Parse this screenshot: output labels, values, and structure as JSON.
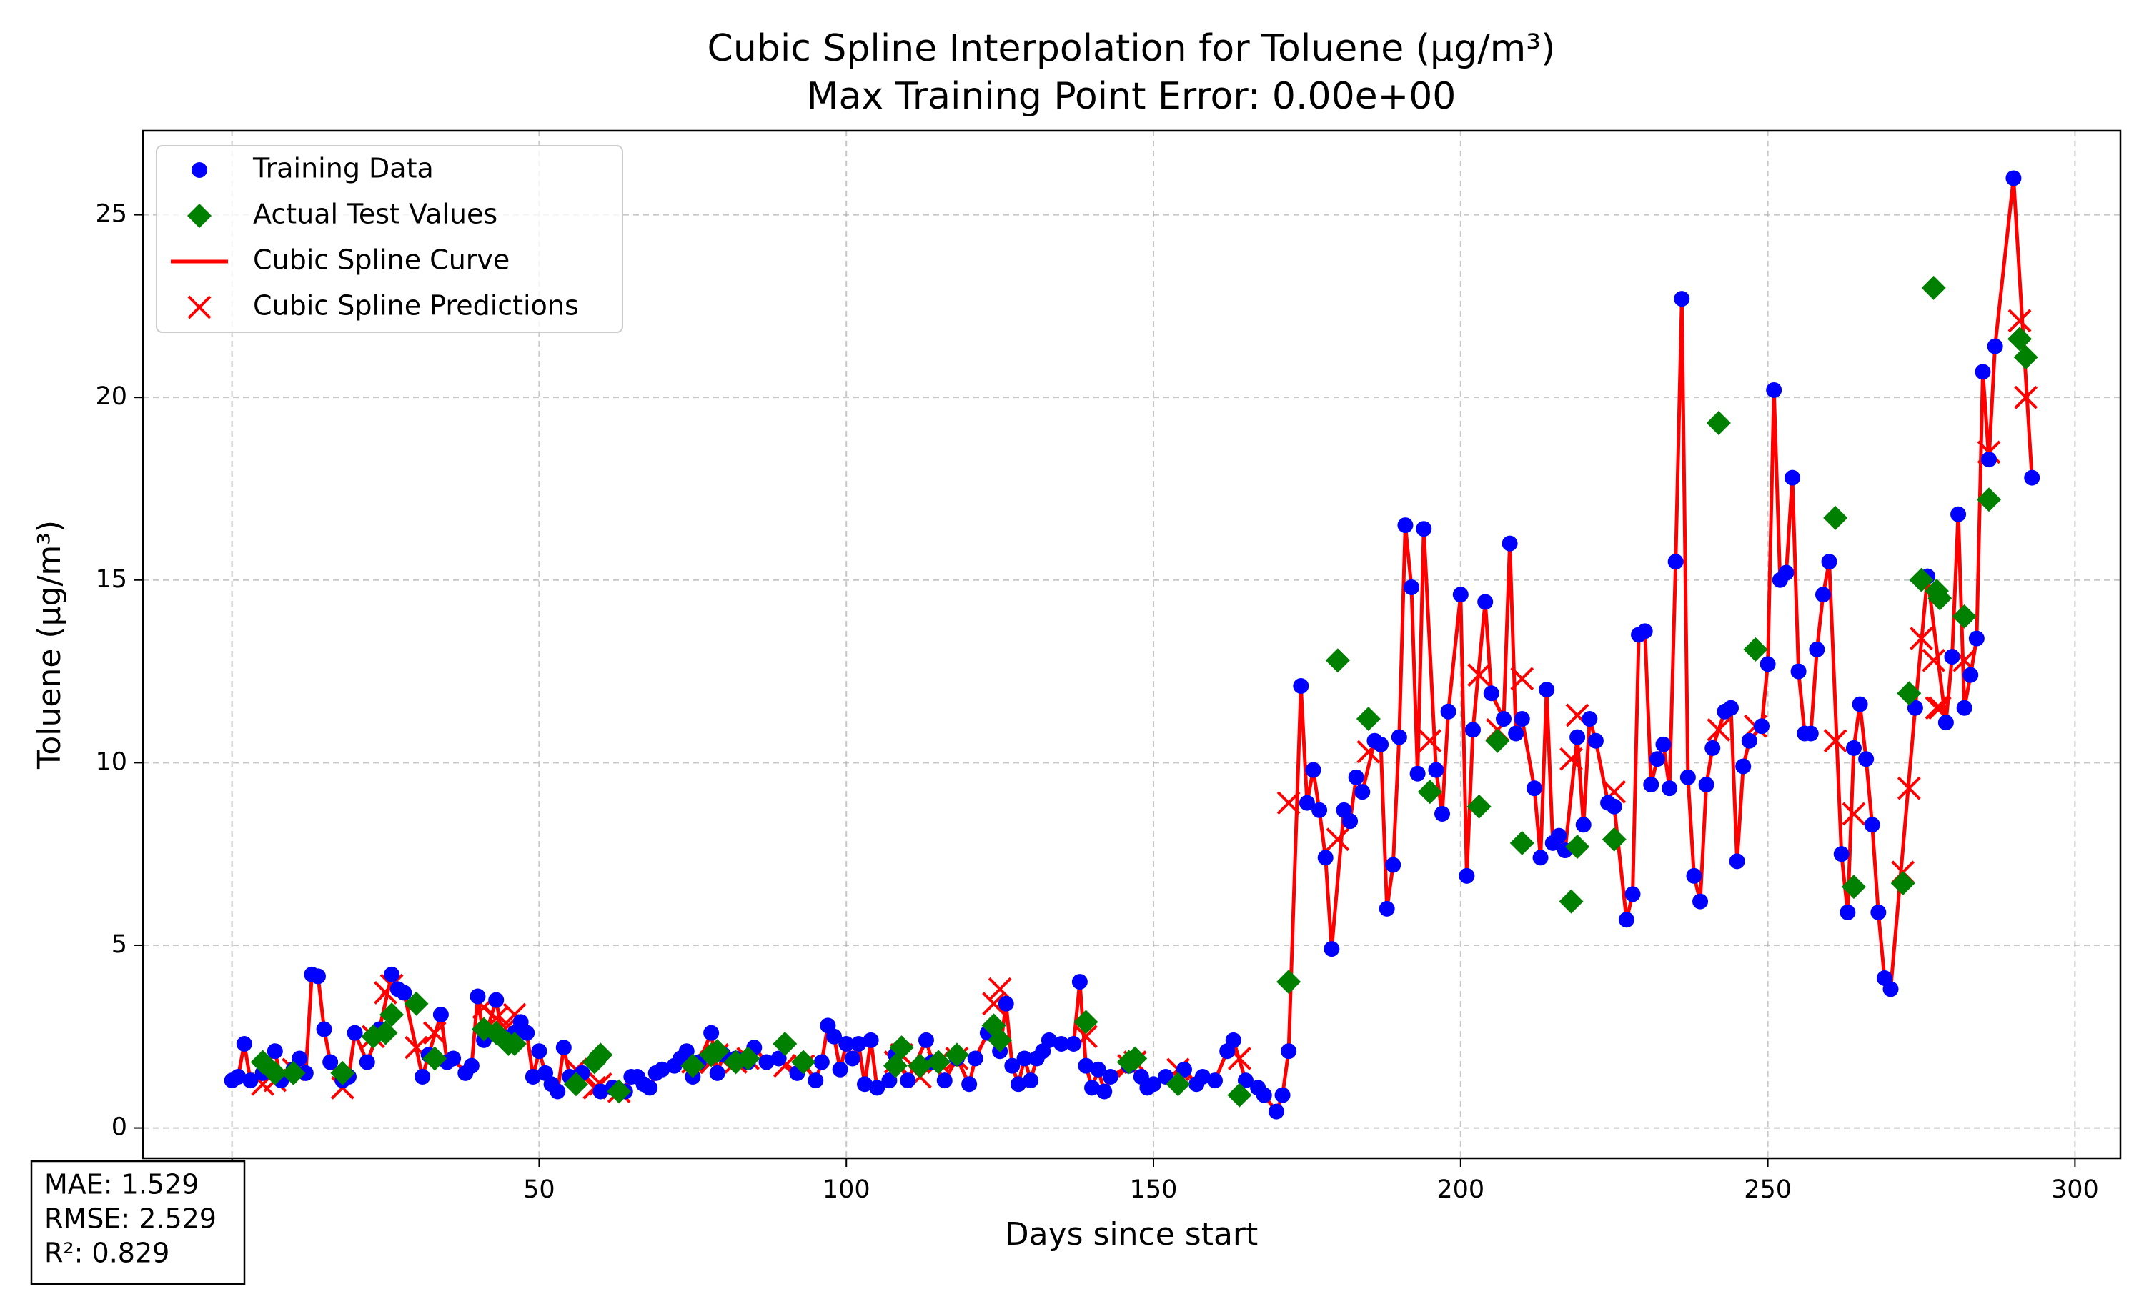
{
  "chart_data": {
    "type": "scatter",
    "title": "Cubic Spline Interpolation for Toluene (µg/m³)",
    "subtitle": "Max Training Point Error: 0.00e+00",
    "xlabel": "Days since start",
    "ylabel": "Toluene (µg/m³)",
    "xlim": [
      -14.5,
      307.4
    ],
    "ylim": [
      -0.83,
      27.3
    ],
    "xticks": [
      0,
      50,
      100,
      150,
      200,
      250,
      300
    ],
    "yticks": [
      0,
      5,
      10,
      15,
      20,
      25
    ],
    "grid": true,
    "legend": "upper left",
    "annotations": [
      "MAE: 1.529",
      "RMSE: 2.529",
      "R²: 0.829"
    ],
    "series": [
      {
        "name": "Training Data",
        "color": "#0000ff",
        "marker": "o",
        "x": [
          0,
          1,
          2,
          3,
          5,
          7,
          8,
          10,
          11,
          12,
          13,
          14,
          15,
          16,
          18,
          19,
          20,
          22,
          24,
          26,
          27,
          28,
          31,
          32,
          34,
          35,
          36,
          38,
          39,
          40,
          41,
          43,
          44,
          46,
          47,
          48,
          49,
          50,
          51,
          52,
          53,
          54,
          55,
          57,
          60,
          62,
          64,
          65,
          66,
          67,
          68,
          69,
          70,
          72,
          73,
          74,
          75,
          76,
          78,
          79,
          80,
          82,
          84,
          85,
          87,
          89,
          92,
          93,
          95,
          96,
          97,
          98,
          99,
          100,
          101,
          102,
          103,
          104,
          105,
          107,
          108,
          110,
          113,
          114,
          116,
          118,
          120,
          121,
          123,
          125,
          126,
          127,
          128,
          129,
          130,
          131,
          132,
          133,
          135,
          137,
          138,
          139,
          140,
          141,
          142,
          143,
          146,
          148,
          149,
          150,
          152,
          155,
          157,
          158,
          160,
          162,
          163,
          165,
          167,
          168,
          170,
          171,
          172,
          174,
          175,
          176,
          177,
          178,
          179,
          181,
          182,
          183,
          184,
          186,
          187,
          188,
          189,
          190,
          191,
          192,
          193,
          194,
          196,
          197,
          198,
          200,
          201,
          202,
          204,
          205,
          207,
          208,
          209,
          210,
          212,
          213,
          214,
          215,
          216,
          217,
          219,
          220,
          221,
          222,
          224,
          225,
          227,
          228,
          229,
          230,
          231,
          232,
          233,
          234,
          235,
          236,
          237,
          238,
          239,
          240,
          241,
          243,
          244,
          245,
          246,
          247,
          249,
          250,
          251,
          252,
          253,
          254,
          255,
          256,
          257,
          258,
          259,
          260,
          262,
          263,
          264,
          265,
          266,
          267,
          268,
          269,
          270,
          274,
          276,
          279,
          280,
          281,
          282,
          283,
          284,
          285,
          286,
          287,
          290,
          293
        ],
        "values": [
          1.3,
          1.4,
          2.3,
          1.3,
          1.5,
          2.1,
          1.3,
          1.6,
          1.9,
          1.5,
          4.2,
          4.15,
          2.7,
          1.8,
          1.3,
          1.4,
          2.6,
          1.8,
          2.7,
          4.2,
          3.8,
          3.7,
          1.4,
          2.0,
          3.1,
          1.8,
          1.9,
          1.5,
          1.7,
          3.6,
          2.4,
          3.5,
          2.5,
          2.6,
          2.9,
          2.6,
          1.4,
          2.1,
          1.5,
          1.2,
          1.0,
          2.2,
          1.4,
          1.5,
          1.0,
          1.1,
          1.0,
          1.4,
          1.4,
          1.2,
          1.1,
          1.5,
          1.6,
          1.7,
          1.9,
          2.1,
          1.4,
          1.8,
          2.6,
          1.5,
          2.0,
          1.9,
          1.8,
          2.2,
          1.8,
          1.9,
          1.5,
          1.8,
          1.3,
          1.8,
          2.8,
          2.5,
          1.6,
          2.3,
          1.9,
          2.3,
          1.2,
          2.4,
          1.1,
          1.3,
          2.0,
          1.3,
          2.4,
          1.8,
          1.3,
          1.9,
          1.2,
          1.9,
          2.6,
          2.1,
          3.4,
          1.7,
          1.2,
          1.9,
          1.3,
          1.9,
          2.1,
          2.4,
          2.3,
          2.3,
          4.0,
          1.7,
          1.1,
          1.6,
          1.0,
          1.4,
          1.7,
          1.4,
          1.1,
          1.2,
          1.4,
          1.6,
          1.2,
          1.4,
          1.3,
          2.1,
          2.4,
          1.3,
          1.1,
          0.9,
          0.45,
          0.9,
          2.1,
          12.1,
          8.9,
          9.8,
          8.7,
          7.4,
          4.9,
          8.7,
          8.4,
          9.6,
          9.2,
          10.6,
          10.5,
          6.0,
          7.2,
          10.7,
          16.5,
          14.8,
          9.7,
          16.4,
          9.8,
          8.6,
          11.4,
          14.6,
          6.9,
          10.9,
          14.4,
          11.9,
          11.2,
          16.0,
          10.8,
          11.2,
          9.3,
          7.4,
          12.0,
          7.8,
          8.0,
          7.6,
          10.7,
          8.3,
          11.2,
          10.6,
          8.9,
          8.8,
          5.7,
          6.4,
          13.5,
          13.6,
          9.4,
          10.1,
          10.5,
          9.3,
          15.5,
          22.7,
          9.6,
          6.9,
          6.2,
          9.4,
          10.4,
          11.4,
          11.5,
          7.3,
          9.9,
          10.6,
          11.0,
          12.7,
          20.2,
          15.0,
          15.2,
          17.8,
          12.5,
          10.8,
          10.8,
          13.1,
          14.6,
          15.5,
          7.5,
          5.9,
          10.4,
          11.6,
          10.1,
          8.3,
          5.9,
          4.1,
          3.8,
          11.5,
          15.1,
          11.1,
          12.9,
          16.8,
          11.5,
          12.4,
          13.4,
          20.7,
          18.3,
          21.4,
          26.0,
          17.8
        ]
      },
      {
        "name": "Actual Test Values",
        "color": "#008000",
        "marker": "D",
        "x": [
          5,
          7,
          10,
          18,
          23,
          25,
          26,
          30,
          33,
          41,
          43,
          45,
          46,
          56,
          59,
          60,
          63,
          75,
          78,
          79,
          82,
          84,
          90,
          93,
          108,
          109,
          112,
          115,
          118,
          124,
          125,
          139,
          146,
          147,
          154,
          164,
          172,
          180,
          185,
          195,
          203,
          206,
          210,
          218,
          219,
          225,
          242,
          248,
          261,
          264,
          272,
          273,
          275,
          277,
          277.5,
          278,
          282,
          286,
          291,
          292
        ],
        "values": [
          1.8,
          1.5,
          1.5,
          1.5,
          2.5,
          2.6,
          3.1,
          3.4,
          1.9,
          2.7,
          2.6,
          2.3,
          2.3,
          1.2,
          1.8,
          2.0,
          1.0,
          1.7,
          2.0,
          2.1,
          1.8,
          1.9,
          2.3,
          1.8,
          1.7,
          2.2,
          1.7,
          1.8,
          2.0,
          2.8,
          2.4,
          2.9,
          1.8,
          1.9,
          1.2,
          0.9,
          4.0,
          12.8,
          11.2,
          9.2,
          8.8,
          10.6,
          7.8,
          6.2,
          7.7,
          7.9,
          19.3,
          13.1,
          16.7,
          6.6,
          6.7,
          11.9,
          15.0,
          23.0,
          14.7,
          14.5,
          14.0,
          17.2,
          21.6,
          21.1
        ]
      },
      {
        "name": "Cubic Spline Curve",
        "color": "#ff0000"
      },
      {
        "name": "Cubic Spline Predictions",
        "color": "#ff0000",
        "marker": "x",
        "x": [
          5,
          7,
          10,
          18,
          23,
          25,
          26,
          30,
          33,
          41,
          43,
          45,
          46,
          56,
          59,
          60,
          63,
          75,
          78,
          79,
          82,
          84,
          90,
          93,
          108,
          109,
          112,
          115,
          118,
          124,
          125,
          139,
          146,
          147,
          154,
          164,
          172,
          180,
          185,
          195,
          203,
          206,
          210,
          218,
          219,
          225,
          242,
          248,
          261,
          264,
          272,
          273,
          275,
          277,
          277.5,
          278,
          282,
          286,
          291,
          292
        ],
        "values": [
          1.2,
          1.3,
          1.6,
          1.1,
          2.5,
          3.7,
          3.9,
          2.2,
          2.6,
          3.3,
          3.0,
          2.8,
          3.1,
          1.6,
          1.1,
          1.2,
          1.0,
          1.8,
          1.8,
          2.0,
          1.8,
          1.9,
          1.7,
          1.7,
          1.8,
          2.0,
          1.4,
          1.8,
          1.9,
          3.4,
          3.8,
          2.5,
          1.7,
          1.8,
          1.6,
          1.9,
          8.9,
          7.9,
          10.3,
          10.6,
          12.4,
          10.9,
          12.3,
          10.1,
          11.3,
          9.2,
          10.9,
          11.0,
          10.6,
          8.6,
          7.0,
          9.3,
          13.4,
          12.8,
          11.5,
          11.5,
          12.8,
          18.5,
          22.1,
          20.0
        ]
      }
    ]
  }
}
